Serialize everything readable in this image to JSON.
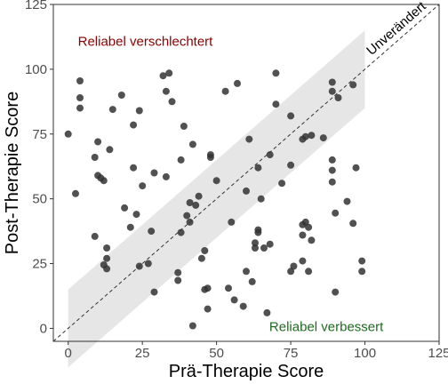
{
  "chart_data": {
    "type": "scatter",
    "xlabel": "Prä-Therapie Score",
    "ylabel": "Post-Therapie Score",
    "xlim": [
      -5,
      125
    ],
    "ylim": [
      -5,
      125
    ],
    "xticks": [
      0,
      25,
      50,
      75,
      100,
      125
    ],
    "yticks": [
      0,
      25,
      50,
      75,
      100,
      125
    ],
    "grid": false,
    "identity_line": {
      "label": "Unverändert",
      "style": "dashed",
      "color": "#333333"
    },
    "reliable_change_band": {
      "half_width": 15,
      "x_range": [
        0,
        100
      ],
      "color": "#e6e6e6"
    },
    "annotations": [
      {
        "text": "Reliabel verschlechtert",
        "x": 26,
        "y": 109,
        "color": "#8b0000"
      },
      {
        "text": "Reliabel verbessert",
        "x": 87,
        "y": -1,
        "color": "#1e6b1e"
      }
    ],
    "point_color": "#333333",
    "points": [
      [
        0,
        75
      ],
      [
        2.5,
        52
      ],
      [
        4,
        95.5
      ],
      [
        4,
        89
      ],
      [
        4,
        85
      ],
      [
        9,
        35.5
      ],
      [
        9,
        66
      ],
      [
        10,
        72
      ],
      [
        10,
        59
      ],
      [
        11,
        58
      ],
      [
        12,
        57
      ],
      [
        12,
        24.5
      ],
      [
        13,
        27
      ],
      [
        13,
        23
      ],
      [
        13,
        31
      ],
      [
        14,
        69
      ],
      [
        15,
        84.5
      ],
      [
        18,
        90
      ],
      [
        19,
        46.5
      ],
      [
        21,
        39
      ],
      [
        22,
        78.5
      ],
      [
        22,
        62
      ],
      [
        23,
        44
      ],
      [
        24,
        24
      ],
      [
        24,
        84
      ],
      [
        25,
        55
      ],
      [
        27,
        25
      ],
      [
        28,
        37.5
      ],
      [
        29,
        14
      ],
      [
        29,
        60
      ],
      [
        32,
        97.5
      ],
      [
        33,
        91.5
      ],
      [
        33,
        58.5
      ],
      [
        34,
        98.5
      ],
      [
        35,
        87.5
      ],
      [
        37,
        18.5
      ],
      [
        37,
        21.5
      ],
      [
        38,
        37
      ],
      [
        38,
        65
      ],
      [
        39,
        78
      ],
      [
        40,
        43.5
      ],
      [
        41,
        48.5
      ],
      [
        41,
        41
      ],
      [
        42,
        1
      ],
      [
        42,
        71
      ],
      [
        43,
        47.5
      ],
      [
        44,
        51
      ],
      [
        45,
        27
      ],
      [
        46,
        30
      ],
      [
        46,
        15
      ],
      [
        47,
        15.5
      ],
      [
        47,
        7.5
      ],
      [
        48,
        67
      ],
      [
        48,
        66
      ],
      [
        50,
        57
      ],
      [
        53,
        91.5
      ],
      [
        54,
        15.5
      ],
      [
        55,
        41
      ],
      [
        56,
        11
      ],
      [
        57,
        94.5
      ],
      [
        59,
        8.5
      ],
      [
        60,
        22
      ],
      [
        60,
        53
      ],
      [
        61,
        73
      ],
      [
        62,
        18
      ],
      [
        63,
        31
      ],
      [
        63,
        33
      ],
      [
        64,
        38
      ],
      [
        64,
        37
      ],
      [
        64,
        62
      ],
      [
        65,
        50
      ],
      [
        66,
        31
      ],
      [
        67,
        6
      ],
      [
        68,
        32.5
      ],
      [
        68,
        67
      ],
      [
        70,
        86.5
      ],
      [
        70,
        98.5
      ],
      [
        72,
        56
      ],
      [
        75,
        22
      ],
      [
        75,
        63
      ],
      [
        75,
        82
      ],
      [
        76,
        24
      ],
      [
        79,
        73
      ],
      [
        79,
        36
      ],
      [
        79,
        26
      ],
      [
        79,
        40
      ],
      [
        80,
        74
      ],
      [
        80,
        41
      ],
      [
        81,
        39
      ],
      [
        81,
        22
      ],
      [
        82,
        34
      ],
      [
        82,
        74.5
      ],
      [
        86,
        73.5
      ],
      [
        89,
        95
      ],
      [
        89,
        91.5
      ],
      [
        89,
        65
      ],
      [
        89,
        61
      ],
      [
        89,
        56.5
      ],
      [
        90,
        44.5
      ],
      [
        90,
        14
      ],
      [
        91,
        89
      ],
      [
        94,
        49
      ],
      [
        96,
        40.5
      ],
      [
        96,
        94
      ],
      [
        97,
        62
      ],
      [
        99,
        26
      ],
      [
        99,
        22
      ]
    ]
  }
}
